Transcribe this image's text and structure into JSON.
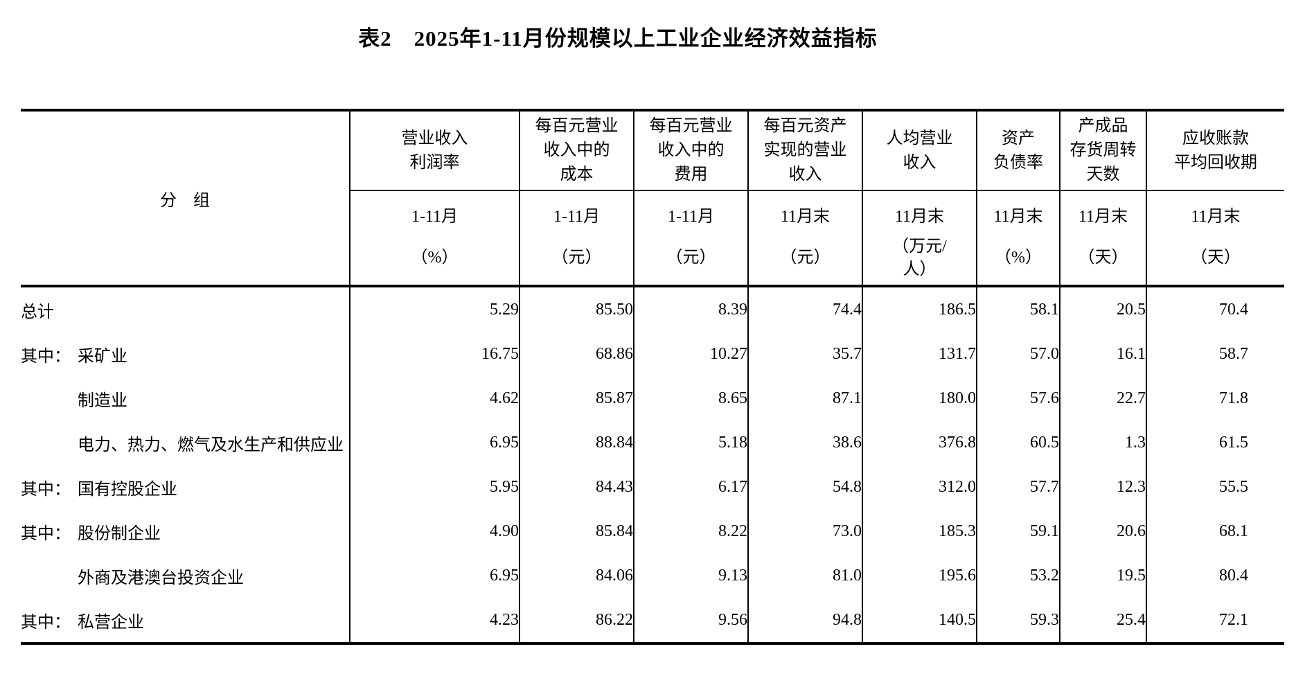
{
  "title": "表2　2025年1-11月份规模以上工业企业经济效益指标",
  "table": {
    "group_header": "分　组",
    "columns": [
      {
        "title_lines": [
          "营业收入",
          "利润率"
        ],
        "period": "1-11月",
        "unit_lines": [
          "（%）"
        ]
      },
      {
        "title_lines": [
          "每百元营业",
          "收入中的",
          "成本"
        ],
        "period": "1-11月",
        "unit_lines": [
          "（元）"
        ]
      },
      {
        "title_lines": [
          "每百元营业",
          "收入中的",
          "费用"
        ],
        "period": "1-11月",
        "unit_lines": [
          "（元）"
        ]
      },
      {
        "title_lines": [
          "每百元资产",
          "实现的营业",
          "收入"
        ],
        "period": "11月末",
        "unit_lines": [
          "（元）"
        ]
      },
      {
        "title_lines": [
          "人均营业",
          "收入"
        ],
        "period": "11月末",
        "unit_lines": [
          "（万元/",
          "人）"
        ]
      },
      {
        "title_lines": [
          "资产",
          "负债率"
        ],
        "period": "11月末",
        "unit_lines": [
          "（%）"
        ]
      },
      {
        "title_lines": [
          "产成品",
          "存货周转",
          "天数"
        ],
        "period": "11月末",
        "unit_lines": [
          "（天）"
        ]
      },
      {
        "title_lines": [
          "应收账款",
          "平均回收期"
        ],
        "period": "11月末",
        "unit_lines": [
          "（天）"
        ]
      }
    ],
    "rows": [
      {
        "prefix": "",
        "label": "总计",
        "indent": false,
        "values": [
          "5.29",
          "85.50",
          "8.39",
          "74.4",
          "186.5",
          "58.1",
          "20.5",
          "70.4"
        ]
      },
      {
        "prefix": "其中：",
        "label": "采矿业",
        "indent": false,
        "values": [
          "16.75",
          "68.86",
          "10.27",
          "35.7",
          "131.7",
          "57.0",
          "16.1",
          "58.7"
        ]
      },
      {
        "prefix": "",
        "label": "制造业",
        "indent": true,
        "values": [
          "4.62",
          "85.87",
          "8.65",
          "87.1",
          "180.0",
          "57.6",
          "22.7",
          "71.8"
        ]
      },
      {
        "prefix": "",
        "label": "电力、热力、燃气及水生产和供应业",
        "indent": true,
        "values": [
          "6.95",
          "88.84",
          "5.18",
          "38.6",
          "376.8",
          "60.5",
          "1.3",
          "61.5"
        ]
      },
      {
        "prefix": "其中：",
        "label": "国有控股企业",
        "indent": false,
        "values": [
          "5.95",
          "84.43",
          "6.17",
          "54.8",
          "312.0",
          "57.7",
          "12.3",
          "55.5"
        ]
      },
      {
        "prefix": "其中：",
        "label": "股份制企业",
        "indent": false,
        "values": [
          "4.90",
          "85.84",
          "8.22",
          "73.0",
          "185.3",
          "59.1",
          "20.6",
          "68.1"
        ]
      },
      {
        "prefix": "",
        "label": "外商及港澳台投资企业",
        "indent": true,
        "values": [
          "6.95",
          "84.06",
          "9.13",
          "81.0",
          "195.6",
          "53.2",
          "19.5",
          "80.4"
        ]
      },
      {
        "prefix": "其中：",
        "label": "私营企业",
        "indent": false,
        "values": [
          "4.23",
          "86.22",
          "9.56",
          "94.8",
          "140.5",
          "59.3",
          "25.4",
          "72.1"
        ]
      }
    ]
  }
}
